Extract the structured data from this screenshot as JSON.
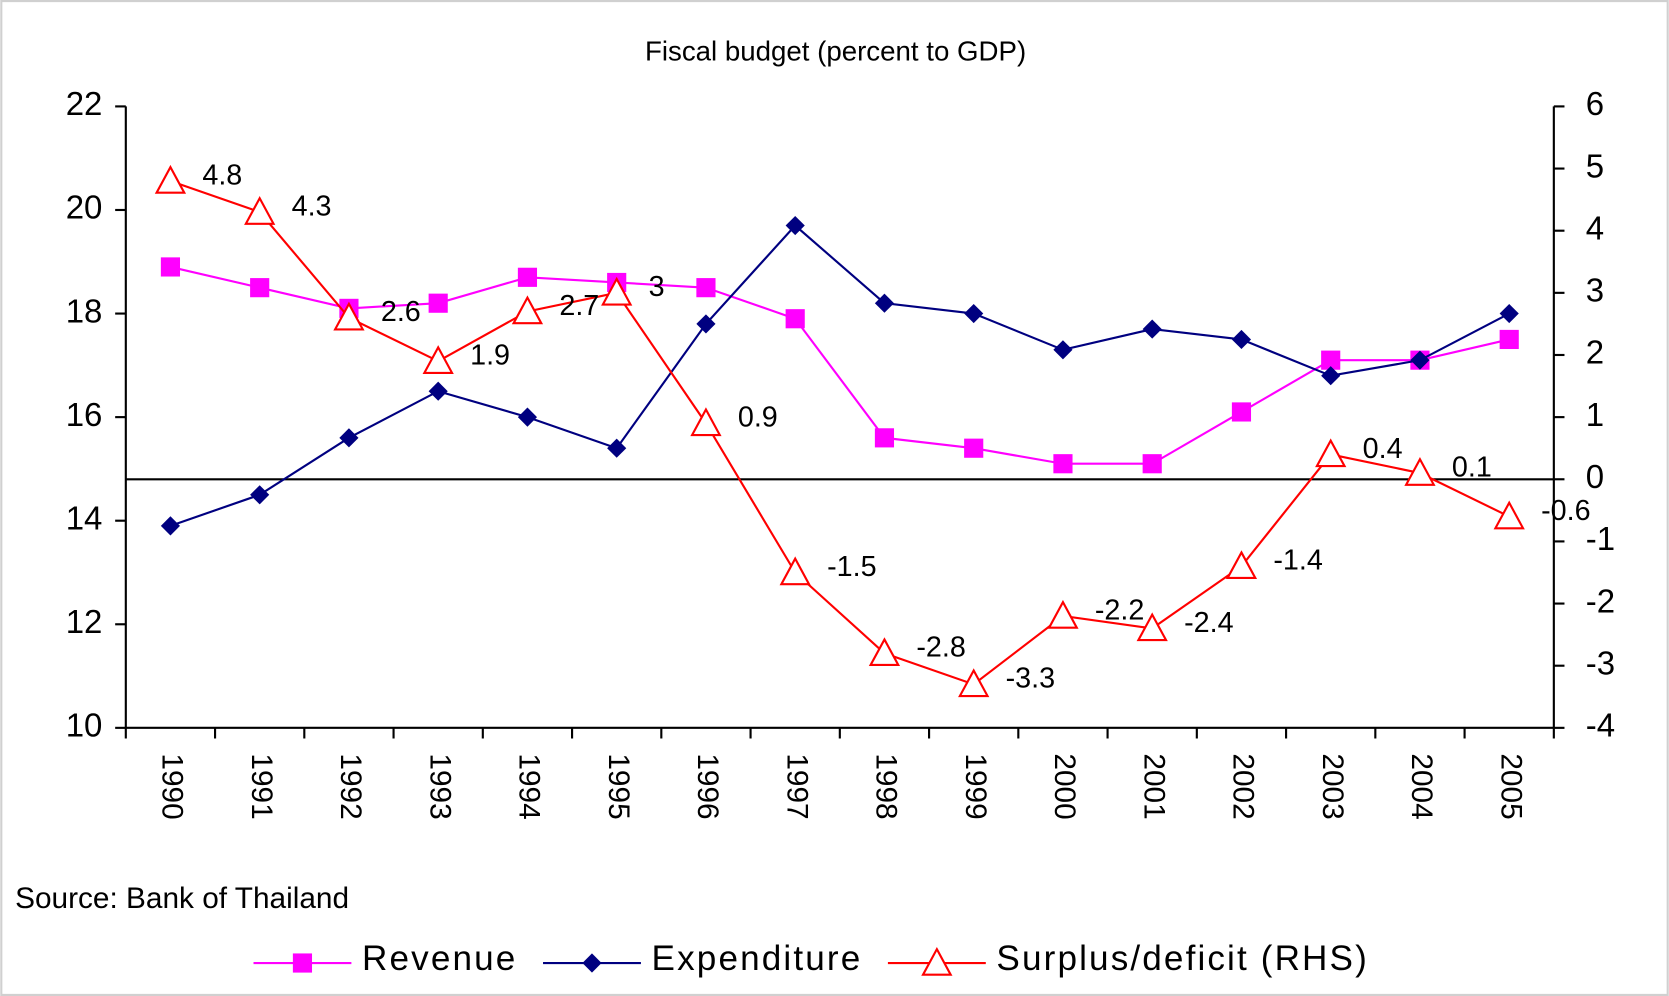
{
  "chart_data": {
    "type": "line",
    "title": "Fiscal budget (percent to GDP)",
    "source": "Source: Bank of Thailand",
    "categories": [
      "1990",
      "1991",
      "1992",
      "1993",
      "1994",
      "1995",
      "1996",
      "1997",
      "1998",
      "1999",
      "2000",
      "2001",
      "2002",
      "2003",
      "2004",
      "2005"
    ],
    "ylim": [
      10,
      22
    ],
    "yticks": [
      10,
      12,
      14,
      16,
      18,
      20,
      22
    ],
    "y2lim": [
      -4,
      6
    ],
    "y2ticks": [
      -4,
      -3,
      -2,
      -1,
      0,
      1,
      2,
      3,
      4,
      5,
      6
    ],
    "series": [
      {
        "name": "Revenue",
        "color": "#ff00ff",
        "marker": "square",
        "values": [
          18.9,
          18.5,
          18.1,
          18.2,
          18.7,
          18.6,
          18.5,
          17.9,
          15.6,
          15.4,
          15.1,
          15.1,
          16.1,
          17.1,
          17.1,
          17.5
        ]
      },
      {
        "name": "Expenditure",
        "color": "#000080",
        "marker": "diamond",
        "values": [
          13.9,
          14.5,
          15.6,
          16.5,
          16.0,
          15.4,
          17.8,
          19.7,
          18.2,
          18.0,
          17.3,
          17.7,
          17.5,
          16.8,
          17.1,
          18.0
        ]
      },
      {
        "name": "Surplus/deficit (RHS)",
        "color": "#ff0000",
        "marker": "triangle",
        "axis": "y2",
        "data_labels": true,
        "values": [
          4.8,
          4.3,
          2.6,
          1.9,
          2.7,
          3,
          0.9,
          -1.5,
          -2.8,
          -3.3,
          -2.2,
          -2.4,
          -1.4,
          0.4,
          0.1,
          -0.6
        ]
      }
    ]
  }
}
